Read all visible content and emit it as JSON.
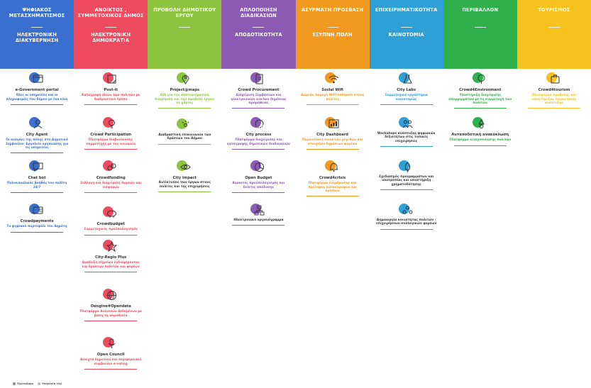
{
  "colors": {
    "col1": "#3a6fd0",
    "col2": "#ef4b60",
    "col3": "#8cc43f",
    "col4": "#8c5bb3",
    "col5": "#f29a1f",
    "col6": "#2ea0d6",
    "col7": "#2fb04a",
    "col8": "#f7c21f"
  },
  "columns": [
    {
      "top": "ΨΗΦΙΑΚΟΣ ΜΕΤΑΣΧΗΜΑΤΙΣΜΟΣ",
      "bottom": "ΗΛΕΚΤΡΟΝΙΚΗ ΔΙΑΚΥΒΕΡΝΗΣΗ",
      "color": "#3a6fd0",
      "items": [
        {
          "title": "e-Government portal",
          "desc": "Όλες οι υπηρεσίες και οι πληροφορίες του δήμου με ένα κλικ",
          "icon": "browser-icon"
        },
        {
          "title": "City Agent",
          "desc": "Οι ανάγκες της πόλης στο Δημοτικό Συμβούλιο- Εργαλείο οργάνωσης για τις υπηρεσίες",
          "icon": "agent-icon"
        },
        {
          "title": "Chat bot",
          "desc": "Πολυκαναλικός βοηθός του πολίτη 24/7",
          "icon": "chat-icon"
        },
        {
          "title": "Crowdpayments",
          "desc": "Το ψηφιακό πορτοφόλι του Δημότη",
          "icon": "payment-icon"
        }
      ]
    },
    {
      "top": "ΑΝΟΙΚΤΟΣ , ΣΥΜΜΕΤΟΧΙΚΟΣ ΔΗΜΟΣ",
      "bottom": "ΗΛΕΚΤΡΟΝΙΚΗ ΔΗΜΟΚΡΑΤΙΑ",
      "color": "#ef4b60",
      "items": [
        {
          "title": "Post-it",
          "desc": "Καταγραφή ιδεών των πολιτών με διαδραστικό τρόπο",
          "icon": "note-icon"
        },
        {
          "title": "Crowd Participation",
          "desc": "Πλατφόρμα διαβούλευσης συμμετοχής με την κοινωνία",
          "icon": "bulb-icon"
        },
        {
          "title": "Crowdfunding",
          "desc": "Συλλογή και διαχείριση δωρεών και εισφορών",
          "icon": "funding-icon"
        },
        {
          "title": "Crowdbudget",
          "desc": "Συμμετοχικός προϋπολογισμός",
          "icon": "piggy-bank-icon"
        },
        {
          "title": "City-Regio Plus",
          "desc": "Αναδείξη σημείων ενδιαφέροντος και δράσεων πολιτών και φορέων",
          "icon": "star-icon"
        },
        {
          "title": "Oengine#Opendata",
          "desc": "Πλατφόρμα Ανοικτών Δεδομένων με βάση τη νομοθεσία",
          "icon": "globe-icon"
        },
        {
          "title": "Open Council",
          "desc": "Ανοιχτό δημοτικό και περιφερειακό συμβούλιο e-voting",
          "icon": "mic-icon"
        }
      ]
    },
    {
      "top": "ΠΡΟΒΟΛΗ ΔΗΜΟΤΙΚΟΥ ΕΡΓΟΥ",
      "bottom": "",
      "color": "#8cc43f",
      "items": [
        {
          "title": "Project@maps",
          "desc": "GIS για την αποτελεσματική διαχείριση και την προβολή έργων σε χάρτες",
          "icon": "map-pin-icon"
        },
        {
          "title": "",
          "desc": "",
          "big": "Διαδραστική επικοινωνία των δράσεων του Δήμου",
          "icon": "broadcast-icon"
        },
        {
          "title": "City Impact",
          "desc": "",
          "big": "Αντίκτυπος των έργων στους πολίτες και της επιχειρήσεις",
          "icon": "eye-icon"
        }
      ]
    },
    {
      "top": "ΑΠΛΟΠΟΙΗΣΗ ΔΙΑΔΙΚΑΣΙΩΝ",
      "bottom": "ΑΠΟΔΟΤΙΚΟΤΗΤΑ",
      "color": "#8c5bb3",
      "items": [
        {
          "title": "Crowd Procurement",
          "desc": "Διαχείριση Συμβάσεων και ηλεκτρονικών κύκλων δημόσιας προμήθειας",
          "icon": "procurement-icon"
        },
        {
          "title": "City process",
          "desc": "Πλατφόρμα διαχείρισης και καταγραφής δημοτικών διαδικασιών",
          "icon": "process-icon"
        },
        {
          "title": "Open Budget",
          "desc": "Ανοικτός προϋπολογισμός και δείκτες απόδοσης",
          "icon": "pie-icon"
        },
        {
          "title": "",
          "desc": "",
          "big": "Ηλεκτρονικό οργανόγραμμα",
          "icon": "org-chart-icon"
        }
      ]
    },
    {
      "top": "ΑΣΥΡΜΑΤΗ ΠΡΟΣΒΑΣΗ",
      "bottom": "ΕΞΥΠΝΗ ΠΟΛΗ",
      "color": "#f29a1f",
      "items": [
        {
          "title": "Social Wifi",
          "desc": "Δωρεάν παροχή WiFi hotspots στους πολίτες",
          "icon": "wifi-icon"
        },
        {
          "title": "City Dashboard",
          "desc": "Παρουσίαση ανοικτών μεγεθών και στοιχείων δημόσιων φορέων",
          "icon": "dashboard-icon"
        },
        {
          "title": "Crowd4crisis",
          "desc": "Πλατφόρμα ενημέρωσης και πρόληψης καταστροφών και κρίσεων",
          "icon": "bell-icon"
        }
      ]
    },
    {
      "top": "ΕΠΙΧΕΙΡΗΜΑΤΙΚΟΤΗΤΑ",
      "bottom": "ΚΑΙΝΟΤΟΜΙΑ",
      "color": "#2ea0d6",
      "items": [
        {
          "title": "City Labs",
          "desc": "Συμμετοχικά εργαστήρια καινοτομίας",
          "icon": "lab-icon"
        },
        {
          "title": "",
          "desc": "",
          "big": "Workshops ανάπτυξης ψηφιακών δεξιοτήτων στις τοπικές επιχειρήσεις",
          "icon": "people-icon"
        },
        {
          "title": "",
          "desc": "",
          "big": "Σχεδιασμός προγραμμάτων και νοοτροπίας και υποστήριξη χρηματοδότησης",
          "icon": "rocket-icon"
        },
        {
          "title": "",
          "desc": "",
          "big": "Δημιουργία κοινότητας πολιτών - επιχειρήσεων συλλογικών φορέων",
          "icon": "community-icon"
        }
      ]
    },
    {
      "top": "ΠΕΡΙΒΑΛΛΟΝ",
      "bottom": "",
      "color": "#2fb04a",
      "items": [
        {
          "title": "Crowd4Environment",
          "desc": "Υποστήριξη διαχείρισης απορριμμάτων με τη συμμετοχή των πολιτών",
          "icon": "tree-icon"
        },
        {
          "title": "Ανταποδοτική ανακύκλωση",
          "desc": "Πλατφόρμα κινητοποίησης πολιτών",
          "icon": "recycle-icon"
        }
      ]
    },
    {
      "top": "ΤΟΥΡΙΣΜΟΣ",
      "bottom": "",
      "color": "#f7c21f",
      "items": [
        {
          "title": "Crowd4tourism",
          "desc": "Πλατφόρμα προβολής και υποστήριξης τουριστικής ανάπτυξης",
          "icon": "tourism-icon"
        }
      ]
    }
  ],
  "legend": {
    "a": "Πλατφόρμα",
    "b": "Υπηρεσία εδώ"
  }
}
